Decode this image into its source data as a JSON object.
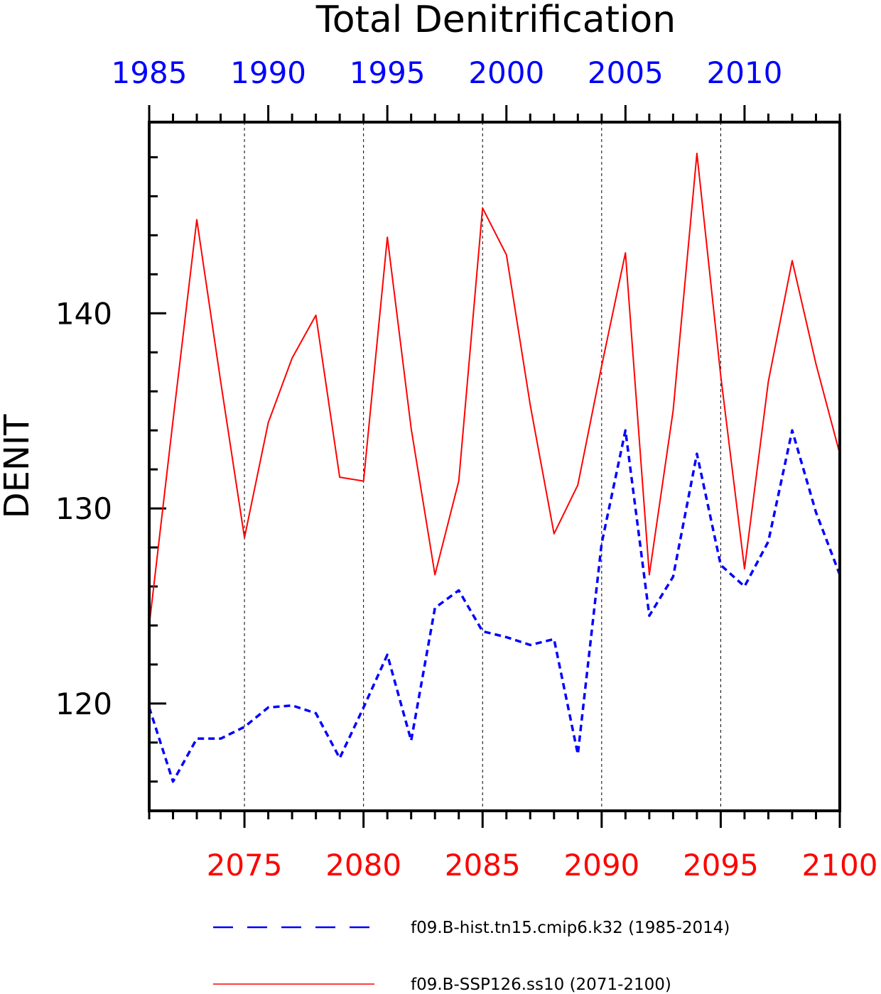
{
  "chart_data": {
    "type": "line",
    "title": "Total Denitrification",
    "ylabel": "DENIT",
    "ylim": [
      114.5,
      149.8
    ],
    "ymajor_ticks": [
      120,
      130,
      140
    ],
    "yminor_step": 2,
    "grid": "vertical dashed at major bottom-axis years",
    "bottom_axis": {
      "color": "#ff0000",
      "range": [
        2071,
        2100
      ],
      "tick_labels": [
        "2075",
        "2080",
        "2085",
        "2090",
        "2095",
        "2100"
      ]
    },
    "top_axis": {
      "color": "#0000ff",
      "range": [
        1985,
        2014
      ],
      "tick_labels": [
        "1985",
        "1990",
        "1995",
        "2000",
        "2005",
        "2010"
      ]
    },
    "legend": {
      "placement": "bottom"
    },
    "series": [
      {
        "name": "f09.B-hist.tn15.cmip6.k32 (1985-2014)",
        "axis": "top",
        "color": "#0000ff",
        "style": "dashed",
        "x": [
          1985,
          1986,
          1987,
          1988,
          1989,
          1990,
          1991,
          1992,
          1993,
          1994,
          1995,
          1996,
          1997,
          1998,
          1999,
          2000,
          2001,
          2002,
          2003,
          2004,
          2005,
          2006,
          2007,
          2008,
          2009,
          2010,
          2011,
          2012,
          2013,
          2014
        ],
        "values": [
          119.8,
          116.0,
          118.2,
          118.2,
          118.8,
          119.8,
          119.9,
          119.5,
          117.2,
          119.8,
          122.5,
          118.1,
          124.9,
          125.8,
          123.7,
          123.4,
          123.0,
          123.3,
          117.4,
          128.2,
          134.0,
          124.5,
          126.5,
          132.8,
          127.1,
          126.0,
          128.3,
          134.0,
          129.8,
          126.6
        ]
      },
      {
        "name": "f09.B-SSP126.ss10 (2071-2100)",
        "axis": "bottom",
        "color": "#ff0000",
        "style": "solid",
        "x": [
          2071,
          2072,
          2073,
          2074,
          2075,
          2076,
          2077,
          2078,
          2079,
          2080,
          2081,
          2082,
          2083,
          2084,
          2085,
          2086,
          2087,
          2088,
          2089,
          2090,
          2091,
          2092,
          2093,
          2094,
          2095,
          2096,
          2097,
          2098,
          2099,
          2100
        ],
        "values": [
          124.0,
          134.5,
          144.8,
          136.5,
          128.5,
          134.4,
          137.7,
          139.9,
          131.6,
          131.4,
          143.9,
          134.1,
          126.6,
          131.4,
          145.4,
          143.0,
          135.3,
          128.7,
          131.2,
          137.3,
          143.1,
          126.6,
          135.0,
          148.2,
          136.8,
          126.9,
          136.5,
          142.7,
          137.4,
          132.8
        ]
      }
    ]
  }
}
